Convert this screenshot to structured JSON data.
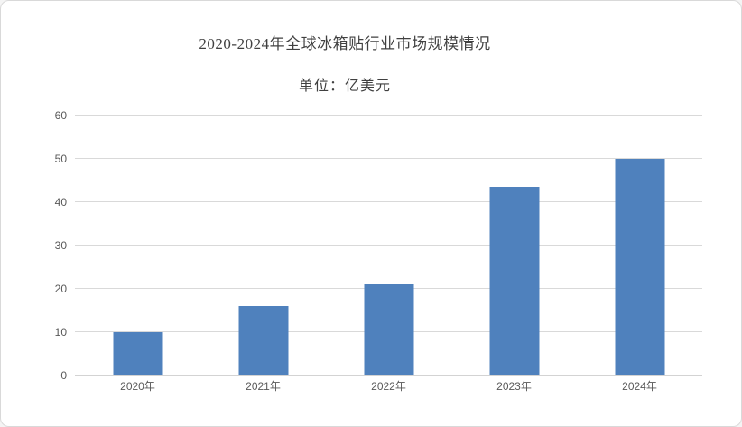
{
  "window": {
    "background": "#ffffff",
    "frame_border_color": "#d9d9d9"
  },
  "header": {
    "title": "2020-2024年全球冰箱贴行业市场规模情况",
    "subtitle": "单位：亿美元"
  },
  "chart_data": {
    "type": "bar",
    "title": "2020-2024年全球冰箱贴行业市场规模情况",
    "subtitle": "单位：亿美元",
    "unit": "亿美元",
    "categories": [
      "2020年",
      "2021年",
      "2022年",
      "2023年",
      "2024年"
    ],
    "values": [
      10,
      16,
      21,
      43.5,
      50
    ],
    "xlabel": "",
    "ylabel": "",
    "ylim": [
      0,
      60
    ],
    "yticks": [
      0,
      10,
      20,
      30,
      40,
      50,
      60
    ],
    "grid": true,
    "legend": "none",
    "bar_color": "#4f81bd",
    "gridline_color": "#d9d9d9",
    "tick_label_color": "#595959",
    "title_color": "#404040"
  }
}
